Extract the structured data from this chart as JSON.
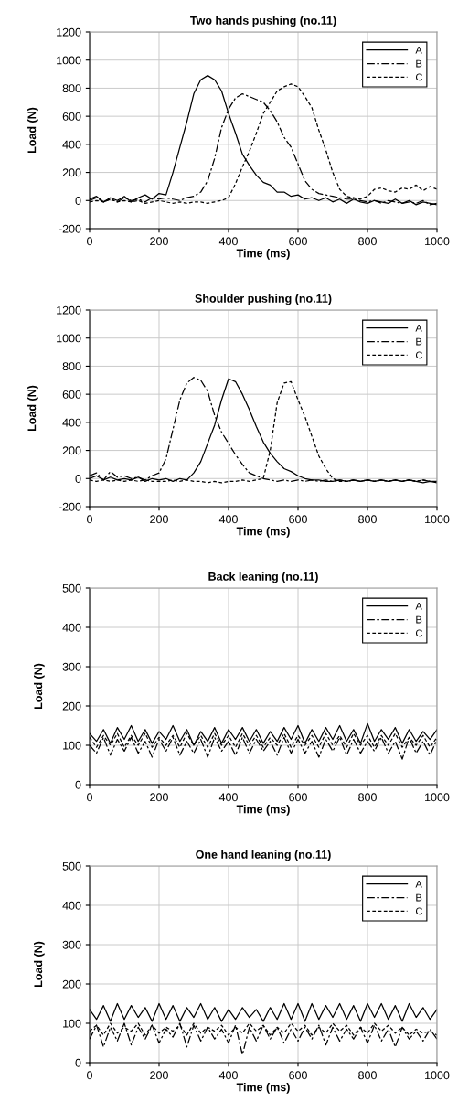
{
  "chart_data": [
    {
      "type": "line",
      "title": "Two hands pushing (no.11)",
      "xlabel": "Time (ms)",
      "ylabel": "Load (N)",
      "xlim": [
        0,
        1000
      ],
      "xticks": [
        0,
        200,
        400,
        600,
        800,
        1000
      ],
      "ylim": [
        -200,
        1200
      ],
      "yticks": [
        -200,
        0,
        200,
        400,
        600,
        800,
        1000,
        1200
      ],
      "grid": true,
      "legend": "top right",
      "x": [
        0,
        20,
        40,
        60,
        80,
        100,
        120,
        140,
        160,
        180,
        200,
        220,
        240,
        260,
        280,
        300,
        320,
        340,
        360,
        380,
        400,
        420,
        440,
        460,
        480,
        500,
        520,
        540,
        560,
        580,
        600,
        620,
        640,
        660,
        680,
        700,
        720,
        740,
        760,
        780,
        800,
        820,
        840,
        860,
        880,
        900,
        920,
        940,
        960,
        980,
        1000
      ],
      "series": [
        {
          "name": "A",
          "color": "#000000",
          "line_style": "solid",
          "values": [
            10,
            30,
            -10,
            20,
            0,
            30,
            -10,
            20,
            40,
            10,
            50,
            40,
            200,
            380,
            560,
            760,
            860,
            890,
            860,
            780,
            620,
            480,
            330,
            250,
            180,
            130,
            110,
            60,
            60,
            30,
            40,
            10,
            20,
            0,
            20,
            -10,
            10,
            -20,
            10,
            -10,
            -20,
            0,
            -10,
            -20,
            10,
            -20,
            0,
            -30,
            -10,
            -20,
            -30
          ]
        },
        {
          "name": "B",
          "color": "#000000",
          "line_style": "dashdot",
          "values": [
            0,
            20,
            -10,
            10,
            -10,
            20,
            0,
            10,
            -10,
            20,
            10,
            20,
            10,
            0,
            20,
            30,
            60,
            140,
            300,
            520,
            650,
            730,
            760,
            740,
            720,
            700,
            640,
            560,
            450,
            380,
            260,
            140,
            80,
            50,
            40,
            30,
            20,
            10,
            10,
            0,
            -10,
            0,
            -20,
            0,
            -10,
            -20,
            -10,
            -20,
            0,
            -30,
            -20
          ]
        },
        {
          "name": "C",
          "color": "#000000",
          "line_style": "dashed",
          "values": [
            -10,
            0,
            -10,
            10,
            -10,
            0,
            -10,
            0,
            -20,
            -10,
            0,
            -10,
            -20,
            -10,
            -20,
            -10,
            -10,
            -20,
            -10,
            0,
            20,
            120,
            240,
            350,
            480,
            620,
            700,
            780,
            810,
            830,
            810,
            740,
            660,
            500,
            360,
            200,
            80,
            30,
            20,
            10,
            30,
            80,
            90,
            70,
            60,
            90,
            80,
            110,
            70,
            100,
            80
          ]
        }
      ]
    },
    {
      "type": "line",
      "title": "Shoulder pushing (no.11)",
      "xlabel": "Time (ms)",
      "ylabel": "Load (N)",
      "xlim": [
        0,
        1000
      ],
      "xticks": [
        0,
        200,
        400,
        600,
        800,
        1000
      ],
      "ylim": [
        -200,
        1200
      ],
      "yticks": [
        -200,
        0,
        200,
        400,
        600,
        800,
        1000,
        1200
      ],
      "grid": true,
      "legend": "top right",
      "x": [
        0,
        20,
        40,
        60,
        80,
        100,
        120,
        140,
        160,
        180,
        200,
        220,
        240,
        260,
        280,
        300,
        320,
        340,
        360,
        380,
        400,
        420,
        440,
        460,
        480,
        500,
        520,
        540,
        560,
        580,
        600,
        620,
        640,
        660,
        680,
        700,
        720,
        740,
        760,
        780,
        800,
        820,
        840,
        860,
        880,
        900,
        920,
        940,
        960,
        980,
        1000
      ],
      "series": [
        {
          "name": "A",
          "color": "#000000",
          "line_style": "solid",
          "values": [
            0,
            20,
            -10,
            10,
            -10,
            0,
            -10,
            10,
            -20,
            0,
            -10,
            0,
            -20,
            0,
            -10,
            40,
            120,
            250,
            380,
            560,
            710,
            690,
            600,
            490,
            370,
            260,
            180,
            120,
            70,
            50,
            20,
            0,
            -10,
            -10,
            -20,
            -20,
            -10,
            -20,
            -10,
            -20,
            -10,
            -20,
            -10,
            -20,
            -10,
            -20,
            -10,
            -20,
            -30,
            -20,
            -30
          ]
        },
        {
          "name": "B",
          "color": "#000000",
          "line_style": "dashdot",
          "values": [
            20,
            40,
            -10,
            50,
            10,
            20,
            0,
            10,
            -10,
            20,
            40,
            140,
            350,
            560,
            680,
            720,
            700,
            620,
            450,
            330,
            250,
            170,
            100,
            40,
            20,
            0,
            -10,
            -20,
            -10,
            -20,
            -10,
            -20,
            -10,
            -20,
            -10,
            -20,
            -10,
            -20,
            -10,
            -20,
            -10,
            -20,
            -10,
            -20,
            -10,
            -20,
            -10,
            -20,
            -10,
            -20,
            -20
          ]
        },
        {
          "name": "C",
          "color": "#000000",
          "line_style": "dashed",
          "values": [
            -10,
            -20,
            -10,
            -20,
            -10,
            -20,
            -10,
            -20,
            -10,
            -20,
            -20,
            -20,
            -10,
            -20,
            -10,
            -20,
            -20,
            -30,
            -20,
            -30,
            -20,
            -20,
            -10,
            -20,
            -10,
            0,
            200,
            540,
            680,
            690,
            560,
            440,
            300,
            160,
            70,
            0,
            -20,
            -20,
            -10,
            -20,
            -10,
            -20,
            -10,
            -20,
            -10,
            -20,
            -10,
            -20,
            -10,
            -20,
            -20
          ]
        }
      ]
    },
    {
      "type": "line",
      "title": "Back leaning (no.11)",
      "xlabel": "Time (ms)",
      "ylabel": "Load (N)",
      "xlim": [
        0,
        1000
      ],
      "xticks": [
        0,
        200,
        400,
        600,
        800,
        1000
      ],
      "ylim": [
        0,
        500
      ],
      "yticks": [
        0,
        100,
        200,
        300,
        400,
        500
      ],
      "grid": true,
      "legend": "top right",
      "x": [
        0,
        20,
        40,
        60,
        80,
        100,
        120,
        140,
        160,
        180,
        200,
        220,
        240,
        260,
        280,
        300,
        320,
        340,
        360,
        380,
        400,
        420,
        440,
        460,
        480,
        500,
        520,
        540,
        560,
        580,
        600,
        620,
        640,
        660,
        680,
        700,
        720,
        740,
        760,
        780,
        800,
        820,
        840,
        860,
        880,
        900,
        920,
        940,
        960,
        980,
        1000
      ],
      "series": [
        {
          "name": "A",
          "color": "#000000",
          "line_style": "solid",
          "values": [
            130,
            110,
            140,
            105,
            145,
            115,
            150,
            110,
            140,
            105,
            135,
            115,
            150,
            110,
            140,
            100,
            135,
            110,
            145,
            105,
            140,
            115,
            145,
            110,
            140,
            105,
            135,
            110,
            145,
            115,
            150,
            105,
            140,
            110,
            145,
            115,
            150,
            110,
            140,
            105,
            155,
            110,
            140,
            115,
            145,
            105,
            140,
            110,
            135,
            115,
            140
          ]
        },
        {
          "name": "B",
          "color": "#000000",
          "line_style": "dashdot",
          "values": [
            100,
            80,
            120,
            75,
            115,
            85,
            120,
            80,
            110,
            70,
            115,
            85,
            120,
            75,
            110,
            80,
            115,
            70,
            120,
            85,
            110,
            75,
            120,
            80,
            115,
            85,
            110,
            75,
            120,
            80,
            115,
            80,
            110,
            70,
            115,
            85,
            120,
            75,
            115,
            80,
            110,
            85,
            120,
            80,
            110,
            65,
            120,
            80,
            110,
            75,
            115
          ]
        },
        {
          "name": "C",
          "color": "#000000",
          "line_style": "dashed",
          "values": [
            120,
            95,
            125,
            100,
            130,
            95,
            125,
            100,
            130,
            95,
            120,
            100,
            125,
            95,
            130,
            100,
            125,
            95,
            130,
            100,
            125,
            95,
            130,
            100,
            125,
            95,
            120,
            100,
            130,
            95,
            125,
            100,
            125,
            95,
            130,
            100,
            125,
            95,
            130,
            100,
            125,
            95,
            125,
            100,
            130,
            95,
            120,
            100,
            125,
            95,
            120
          ]
        }
      ]
    },
    {
      "type": "line",
      "title": "One hand leaning (no.11)",
      "xlabel": "Time (ms)",
      "ylabel": "Load (N)",
      "xlim": [
        0,
        1000
      ],
      "xticks": [
        0,
        200,
        400,
        600,
        800,
        1000
      ],
      "ylim": [
        0,
        500
      ],
      "yticks": [
        0,
        100,
        200,
        300,
        400,
        500
      ],
      "grid": true,
      "legend": "top right",
      "x": [
        0,
        20,
        40,
        60,
        80,
        100,
        120,
        140,
        160,
        180,
        200,
        220,
        240,
        260,
        280,
        300,
        320,
        340,
        360,
        380,
        400,
        420,
        440,
        460,
        480,
        500,
        520,
        540,
        560,
        580,
        600,
        620,
        640,
        660,
        680,
        700,
        720,
        740,
        760,
        780,
        800,
        820,
        840,
        860,
        880,
        900,
        920,
        940,
        960,
        980,
        1000
      ],
      "series": [
        {
          "name": "A",
          "color": "#000000",
          "line_style": "solid",
          "values": [
            135,
            110,
            145,
            105,
            150,
            110,
            145,
            115,
            140,
            105,
            150,
            110,
            145,
            105,
            140,
            115,
            150,
            110,
            140,
            105,
            135,
            110,
            140,
            115,
            135,
            105,
            140,
            110,
            150,
            110,
            150,
            105,
            150,
            110,
            145,
            115,
            150,
            110,
            145,
            105,
            150,
            115,
            150,
            110,
            145,
            105,
            150,
            115,
            140,
            110,
            135
          ]
        },
        {
          "name": "B",
          "color": "#000000",
          "line_style": "dashdot",
          "values": [
            60,
            95,
            40,
            90,
            55,
            100,
            45,
            90,
            60,
            95,
            50,
            85,
            65,
            100,
            40,
            95,
            55,
            90,
            60,
            85,
            50,
            95,
            20,
            90,
            55,
            95,
            60,
            90,
            50,
            85,
            55,
            90,
            60,
            95,
            45,
            90,
            55,
            85,
            60,
            90,
            50,
            95,
            55,
            85,
            40,
            90,
            60,
            80,
            55,
            85,
            60
          ]
        },
        {
          "name": "C",
          "color": "#000000",
          "line_style": "dashed",
          "values": [
            80,
            95,
            70,
            100,
            75,
            90,
            80,
            100,
            70,
            95,
            75,
            90,
            80,
            95,
            70,
            100,
            75,
            90,
            80,
            95,
            70,
            90,
            75,
            100,
            80,
            95,
            70,
            90,
            75,
            100,
            80,
            95,
            70,
            90,
            75,
            100,
            80,
            95,
            70,
            90,
            75,
            100,
            80,
            95,
            75,
            90,
            70,
            85,
            75,
            80,
            70
          ]
        }
      ]
    }
  ]
}
